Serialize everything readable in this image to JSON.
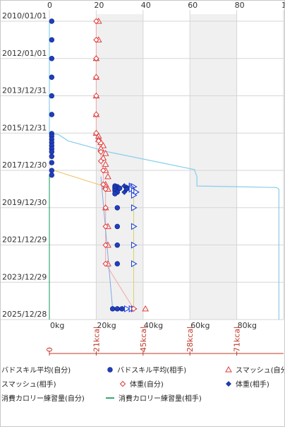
{
  "chart_data": {
    "type": "scatter",
    "orientation": "dates on vertical axis, kg on horizontal axis",
    "y_axis": {
      "type": "date",
      "range": [
        "2010-01-01",
        "2025-12-28"
      ],
      "tick_labels": [
        "2010/01/01",
        "2012/01/01",
        "2013/12/31",
        "2015/12/31",
        "2017/12/30",
        "2019/12/30",
        "2021/12/29",
        "2023/12/29",
        "2025/12/28"
      ]
    },
    "x_axis_bottom": {
      "range": [
        0,
        100
      ],
      "tick_labels": [
        "0kg",
        "20kg",
        "40kg",
        "60kg",
        "80kg"
      ]
    },
    "x_axis_top": {
      "range": [
        0,
        100
      ],
      "tick_labels": [
        "0",
        "20",
        "40",
        "60",
        "80",
        "100"
      ]
    },
    "x_axis_calorie": {
      "range": [
        0,
        100
      ],
      "tick_labels": [
        "0",
        "21kcal",
        "45kcal",
        "28kcal",
        "71kcal"
      ]
    },
    "grid": true,
    "shaded_bands": [
      [
        20,
        40
      ],
      [
        60,
        80
      ]
    ],
    "legend_position": "bottom",
    "series": [
      {
        "name": "バドスキル平均(自分)",
        "color": "#1f3fbf",
        "marker": "dot-solid",
        "line": false,
        "points": [
          [
            "2010-01-01",
            1
          ],
          [
            "2011-01-01",
            1
          ],
          [
            "2012-01-01",
            1
          ],
          [
            "2013-01-01",
            1
          ],
          [
            "2014-01-01",
            1
          ],
          [
            "2015-01-01",
            1
          ],
          [
            "2016-01-10",
            1
          ],
          [
            "2016-03-01",
            1
          ],
          [
            "2016-05-01",
            1
          ],
          [
            "2016-07-01",
            1
          ],
          [
            "2016-09-01",
            1
          ],
          [
            "2016-11-01",
            1
          ],
          [
            "2017-01-01",
            1
          ],
          [
            "2017-04-01",
            1
          ],
          [
            "2017-08-01",
            1
          ],
          [
            "2018-01-01",
            1
          ],
          [
            "2018-04-01",
            1
          ]
        ]
      },
      {
        "name": "バドスキル平均(相手)",
        "color": "#1f3fbf",
        "marker": "dot-solid",
        "line": false,
        "points": [
          [
            "2018-11-01",
            28
          ],
          [
            "2018-11-15",
            29
          ],
          [
            "2018-12-01",
            28
          ],
          [
            "2018-12-15",
            30
          ],
          [
            "2019-01-01",
            28
          ],
          [
            "2019-02-01",
            28
          ],
          [
            "2019-03-01",
            29
          ],
          [
            "2019-04-01",
            28
          ],
          [
            "2020-01-01",
            29
          ],
          [
            "2021-01-01",
            29
          ],
          [
            "2022-01-01",
            29
          ],
          [
            "2023-01-01",
            29
          ],
          [
            "2025-06-01",
            27
          ],
          [
            "2025-06-01",
            29
          ],
          [
            "2025-06-01",
            31
          ]
        ]
      },
      {
        "name": "スマッシュ(自分)",
        "color": "#e03a3a",
        "marker": "triangle-up-open",
        "line": false,
        "points": [
          [
            "2010-01-01",
            21
          ],
          [
            "2011-01-01",
            21
          ],
          [
            "2012-01-01",
            20
          ],
          [
            "2013-01-01",
            20
          ],
          [
            "2014-01-01",
            20
          ],
          [
            "2015-01-01",
            20
          ],
          [
            "2016-01-01",
            20
          ],
          [
            "2016-03-01",
            21
          ],
          [
            "2016-05-01",
            21
          ],
          [
            "2016-07-01",
            22
          ],
          [
            "2016-09-01",
            23
          ],
          [
            "2016-11-01",
            22
          ],
          [
            "2017-02-01",
            24
          ],
          [
            "2017-05-01",
            23
          ],
          [
            "2017-09-01",
            24
          ],
          [
            "2018-01-01",
            24
          ],
          [
            "2018-05-01",
            25
          ],
          [
            "2018-10-01",
            24
          ],
          [
            "2018-11-15",
            24
          ],
          [
            "2019-01-01",
            25
          ],
          [
            "2020-01-01",
            24
          ],
          [
            "2021-01-01",
            25
          ],
          [
            "2022-01-01",
            25
          ],
          [
            "2023-01-01",
            25
          ],
          [
            "2025-06-01",
            41
          ]
        ]
      },
      {
        "name": "スマッシュ(相手)",
        "color": "#2545d6",
        "marker": "triangle-right",
        "line": false,
        "points": [
          [
            "2018-11-01",
            35
          ],
          [
            "2018-11-15",
            36
          ],
          [
            "2018-12-01",
            35
          ],
          [
            "2018-12-15",
            34
          ],
          [
            "2019-01-01",
            35
          ],
          [
            "2019-02-01",
            36
          ],
          [
            "2019-03-01",
            37
          ],
          [
            "2019-05-01",
            36
          ],
          [
            "2020-01-01",
            36
          ],
          [
            "2021-01-01",
            36
          ],
          [
            "2022-01-01",
            36
          ],
          [
            "2023-01-01",
            36
          ],
          [
            "2025-06-01",
            33
          ],
          [
            "2025-06-01",
            35
          ],
          [
            "2025-06-01",
            36
          ]
        ]
      },
      {
        "name": "体重(自分)",
        "color": "#e03a3a",
        "marker": "diamond-open",
        "line": "thin pink",
        "points": [
          [
            "2010-01-01",
            20
          ],
          [
            "2011-01-01",
            20
          ],
          [
            "2012-01-01",
            20
          ],
          [
            "2013-01-01",
            20
          ],
          [
            "2014-01-01",
            20
          ],
          [
            "2015-01-01",
            20
          ],
          [
            "2016-01-01",
            20
          ],
          [
            "2016-06-01",
            21
          ],
          [
            "2017-01-01",
            22
          ],
          [
            "2017-07-01",
            22
          ],
          [
            "2018-01-01",
            23
          ],
          [
            "2018-10-01",
            23
          ],
          [
            "2019-01-01",
            24
          ],
          [
            "2020-01-01",
            24
          ],
          [
            "2021-01-01",
            24
          ],
          [
            "2022-01-01",
            24
          ],
          [
            "2023-01-01",
            24
          ],
          [
            "2025-06-01",
            36
          ]
        ]
      },
      {
        "name": "体重(相手)",
        "color": "#1f3fbf",
        "marker": "diamond-solid",
        "line": "thin blue",
        "points": [
          [
            "2018-11-01",
            32
          ],
          [
            "2018-12-01",
            33
          ],
          [
            "2019-01-01",
            33
          ],
          [
            "2019-03-01",
            32
          ]
        ]
      },
      {
        "name": "消費カロリー練習量(自分)",
        "color": "#87ceeb",
        "marker": "none",
        "line": "solid light blue",
        "points": [
          [
            "2010-01-01",
            0
          ],
          [
            "2016-01-01",
            0
          ],
          [
            "2016-02-01",
            4
          ],
          [
            "2016-06-01",
            8
          ],
          [
            "2017-01-01",
            25
          ],
          [
            "2017-12-15",
            62
          ],
          [
            "2018-01-01",
            62
          ],
          [
            "2018-05-01",
            63
          ],
          [
            "2018-06-01",
            63
          ],
          [
            "2018-11-01",
            63
          ],
          [
            "2018-11-15",
            81
          ],
          [
            "2018-12-01",
            97
          ],
          [
            "2019-01-01",
            98
          ],
          [
            "2025-12-28",
            98
          ]
        ]
      },
      {
        "name": "消費カロリー練習量(相手)",
        "color": "#3aa676",
        "marker": "none",
        "line": "solid green",
        "points": [
          [
            "2018-04-01",
            0
          ],
          [
            "2025-12-28",
            0
          ]
        ]
      }
    ]
  }
}
